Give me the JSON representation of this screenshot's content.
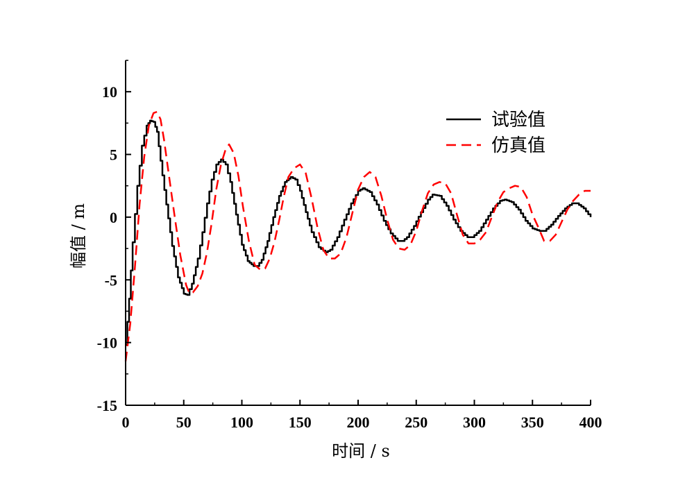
{
  "chart_data": {
    "type": "line",
    "title": "",
    "xlabel": "时间 / s",
    "ylabel": "幅值 / m",
    "xlim": [
      0,
      400
    ],
    "ylim": [
      -15,
      12.5
    ],
    "xticks": [
      0,
      50,
      100,
      150,
      200,
      250,
      300,
      350,
      400
    ],
    "yticks": [
      -15,
      -10,
      -5,
      0,
      5,
      10
    ],
    "grid": false,
    "legend_position": "top-right",
    "series": [
      {
        "name": "试验值",
        "style": "solid",
        "color": "#000000",
        "x": [
          0,
          3,
          6,
          10,
          14,
          18,
          21,
          24,
          27,
          30,
          35,
          40,
          45,
          50,
          53,
          57,
          62,
          66,
          70,
          74,
          78,
          82,
          86,
          90,
          95,
          100,
          105,
          110,
          113,
          117,
          122,
          127,
          132,
          137,
          142,
          146,
          150,
          155,
          160,
          166,
          172,
          176,
          182,
          188,
          194,
          200,
          204,
          210,
          216,
          222,
          228,
          234,
          238,
          242,
          248,
          254,
          260,
          264,
          270,
          276,
          282,
          288,
          294,
          298,
          304,
          310,
          316,
          322,
          326,
          332,
          338,
          344,
          350,
          356,
          360,
          366,
          372,
          378,
          384,
          388,
          394,
          400
        ],
        "y": [
          -10.2,
          -6.5,
          -2,
          2.5,
          5.7,
          7.3,
          7.7,
          7.6,
          6.8,
          4.5,
          1,
          -2.3,
          -4.8,
          -6.1,
          -6.2,
          -5.3,
          -3.3,
          -1.2,
          1.1,
          3,
          4.2,
          4.6,
          4.2,
          2.8,
          0.2,
          -2.2,
          -3.5,
          -3.9,
          -3.9,
          -3.4,
          -1.9,
          0,
          1.7,
          2.8,
          3.2,
          3,
          2.1,
          0.4,
          -1.2,
          -2.4,
          -2.8,
          -2.6,
          -1.6,
          -0.2,
          1.1,
          2.1,
          2.3,
          2,
          1,
          -0.3,
          -1.3,
          -1.9,
          -1.9,
          -1.6,
          -0.7,
          0.4,
          1.4,
          1.8,
          1.7,
          0.9,
          -0.2,
          -1.1,
          -1.6,
          -1.6,
          -1.1,
          -0.2,
          0.7,
          1.3,
          1.4,
          1.2,
          0.6,
          -0.3,
          -0.9,
          -1.1,
          -1.1,
          -0.6,
          0.1,
          0.7,
          1.1,
          1.1,
          0.7,
          0
        ]
      },
      {
        "name": "仿真值",
        "style": "dashed",
        "color": "#ff0000",
        "x": [
          0,
          4,
          8,
          12,
          16,
          20,
          24,
          27,
          30,
          33,
          37,
          42,
          47,
          52,
          55,
          58,
          62,
          66,
          70,
          74,
          78,
          82,
          86,
          89,
          93,
          97,
          101,
          106,
          111,
          116,
          120,
          124,
          128,
          132,
          136,
          140,
          145,
          150,
          155,
          160,
          165,
          170,
          175,
          180,
          185,
          190,
          195,
          200,
          205,
          210,
          215,
          220,
          225,
          230,
          235,
          240,
          245,
          250,
          255,
          260,
          265,
          270,
          275,
          280,
          285,
          290,
          295,
          300,
          305,
          310,
          315,
          320,
          325,
          330,
          335,
          340,
          345,
          350,
          355,
          360,
          365,
          370,
          375,
          380,
          385,
          390,
          395,
          400
        ],
        "y": [
          -11.5,
          -8.5,
          -4,
          1,
          4.8,
          7.3,
          8.3,
          8.4,
          7.8,
          6.2,
          3.5,
          0.2,
          -3,
          -5.4,
          -6.1,
          -6,
          -5.5,
          -4.5,
          -2.8,
          -0.5,
          2.2,
          4.2,
          5.4,
          5.8,
          5.1,
          3.3,
          0.8,
          -1.9,
          -3.8,
          -4.2,
          -4.1,
          -3.3,
          -2,
          -0.3,
          1.6,
          3.2,
          3.9,
          4.2,
          3.5,
          1.5,
          -0.8,
          -2.6,
          -3.3,
          -3.3,
          -2.9,
          -1.6,
          0.3,
          2.2,
          3.2,
          3.6,
          3.2,
          1.7,
          -0.2,
          -1.8,
          -2.5,
          -2.6,
          -2.2,
          -1.1,
          0.5,
          1.9,
          2.6,
          2.8,
          2.7,
          1.9,
          0.2,
          -1.4,
          -2.1,
          -2.1,
          -1.8,
          -1.2,
          0,
          1.2,
          2,
          2.3,
          2.5,
          2.4,
          1.6,
          0.2,
          -0.8,
          -1.9,
          -1.9,
          -1.4,
          -0.4,
          0.6,
          1.3,
          1.8,
          2.1,
          2.1
        ]
      }
    ]
  }
}
